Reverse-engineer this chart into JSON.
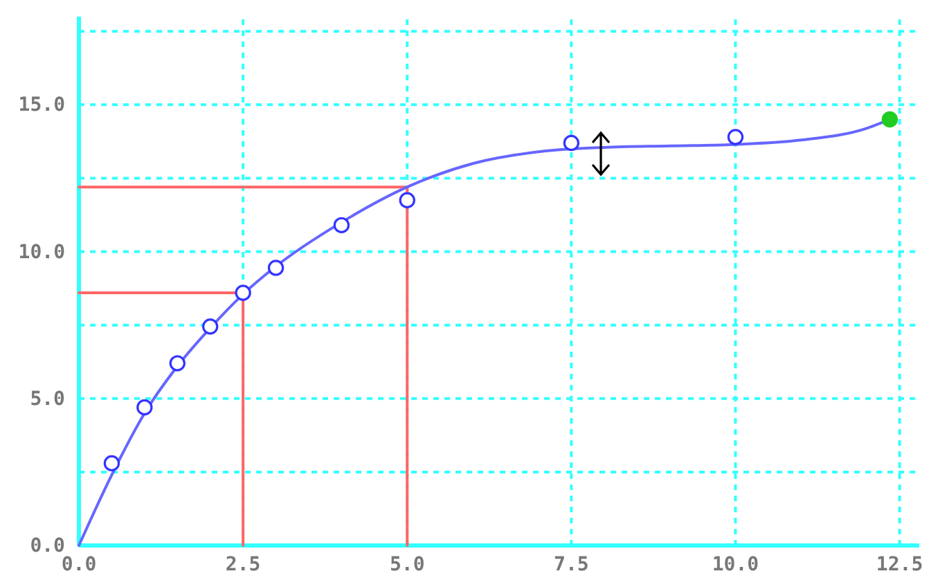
{
  "chart_data": {
    "type": "scatter",
    "xlim": [
      0,
      12.8
    ],
    "ylim": [
      0,
      18
    ],
    "xticks": [
      {
        "value": 0,
        "label": "0.0"
      },
      {
        "value": 2.5,
        "label": "2.5"
      },
      {
        "value": 5,
        "label": "5.0"
      },
      {
        "value": 7.5,
        "label": "7.5"
      },
      {
        "value": 10,
        "label": "10.0"
      },
      {
        "value": 12.5,
        "label": "12.5"
      }
    ],
    "yticks": [
      {
        "value": 0,
        "label": "0.0"
      },
      {
        "value": 2.5,
        "label": null
      },
      {
        "value": 5,
        "label": "5.0"
      },
      {
        "value": 7.5,
        "label": null
      },
      {
        "value": 10,
        "label": "10.0"
      },
      {
        "value": 12.5,
        "label": null
      },
      {
        "value": 15,
        "label": "15.0"
      },
      {
        "value": 17.5,
        "label": null
      }
    ],
    "grid": true,
    "series": [
      {
        "type": "line",
        "color": "#ff6666",
        "marker": "none",
        "line_style": "solid",
        "x": [
          0,
          2.5,
          2.5
        ],
        "values": [
          8.6,
          8.6,
          0
        ]
      },
      {
        "type": "line",
        "color": "#ff6666",
        "marker": "none",
        "line_style": "solid",
        "x": [
          0,
          5,
          5
        ],
        "values": [
          12.2,
          12.2,
          0
        ]
      },
      {
        "type": "line",
        "color": "#6666ff",
        "marker": "none",
        "line_style": "solid",
        "x": [
          0,
          0.5,
          1,
          1.5,
          2,
          2.5,
          3,
          4,
          5,
          6,
          7,
          7.5,
          8,
          9,
          10,
          11,
          12,
          12.35
        ],
        "values": [
          0,
          2.4,
          4.5,
          6.1,
          7.4,
          8.55,
          9.5,
          11.0,
          12.2,
          13.0,
          13.4,
          13.5,
          13.55,
          13.6,
          13.65,
          13.8,
          14.2,
          14.5
        ]
      },
      {
        "color": "#3333ff",
        "marker": "circle",
        "x": [
          0.5,
          1,
          1.5,
          2,
          2.5,
          3,
          4,
          5,
          7.5,
          10
        ],
        "values": [
          2.8,
          4.7,
          6.2,
          7.45,
          8.6,
          9.45,
          10.9,
          11.75,
          13.7,
          13.9
        ]
      },
      {
        "color": "#22cc22",
        "marker": "circle",
        "x": [
          12.35
        ],
        "values": [
          14.5
        ]
      }
    ]
  }
}
